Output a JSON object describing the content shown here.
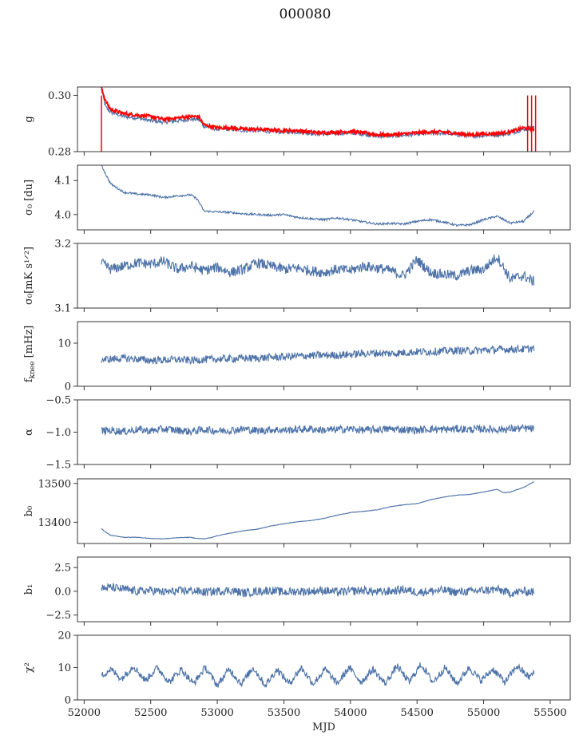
{
  "figure_title": "000080",
  "colors": {
    "series": "#4c72a8",
    "highlight": "#ff0000",
    "axis": "#222222"
  },
  "chart_data": [
    {
      "type": "line",
      "id": "g",
      "ylabel": "g",
      "ylabel_sub": "",
      "xlim": [
        51950,
        55650
      ],
      "ylim": [
        0.28,
        0.303
      ],
      "yticks": [
        0.28,
        0.3
      ],
      "ytick_labels": [
        "0.28",
        "0.30"
      ],
      "show_xtick_labels": false,
      "series": [
        {
          "color": "#4c72a8",
          "x": [
            52130,
            52160,
            52200,
            52300,
            52400,
            52500,
            52600,
            52700,
            52800,
            52860,
            52900,
            53000,
            53100,
            53200,
            53300,
            53400,
            53500,
            53600,
            53700,
            53800,
            53900,
            54000,
            54100,
            54200,
            54300,
            54400,
            54500,
            54600,
            54700,
            54800,
            54900,
            55000,
            55100,
            55200,
            55300,
            55380
          ],
          "y": [
            0.302,
            0.296,
            0.294,
            0.2925,
            0.292,
            0.291,
            0.2905,
            0.291,
            0.2915,
            0.2915,
            0.289,
            0.288,
            0.288,
            0.2875,
            0.2875,
            0.2872,
            0.287,
            0.287,
            0.2865,
            0.2862,
            0.2865,
            0.2867,
            0.2862,
            0.2855,
            0.2855,
            0.2858,
            0.2862,
            0.2866,
            0.2865,
            0.286,
            0.2855,
            0.2858,
            0.286,
            0.2865,
            0.288,
            0.2885
          ]
        },
        {
          "color": "#ff0000",
          "x": [
            52130,
            52160,
            52200,
            52300,
            52400,
            52500,
            52600,
            52700,
            52800,
            52860,
            52900,
            53000,
            53100,
            53200,
            53300,
            53400,
            53500,
            53600,
            53700,
            53800,
            53900,
            54000,
            54100,
            54200,
            54300,
            54400,
            54500,
            54600,
            54700,
            54800,
            54900,
            55000,
            55100,
            55200,
            55300,
            55380
          ],
          "y": [
            0.303,
            0.298,
            0.295,
            0.2935,
            0.293,
            0.2925,
            0.2915,
            0.292,
            0.2925,
            0.2925,
            0.2895,
            0.2885,
            0.2885,
            0.288,
            0.288,
            0.2877,
            0.2875,
            0.2875,
            0.287,
            0.2867,
            0.287,
            0.2872,
            0.2867,
            0.286,
            0.286,
            0.2863,
            0.2867,
            0.287,
            0.287,
            0.2865,
            0.286,
            0.2863,
            0.2865,
            0.287,
            0.2885,
            0.288
          ]
        }
      ]
    },
    {
      "type": "line",
      "id": "sigma0_du",
      "ylabel": "σ₀ [du]",
      "ylabel_sub": "",
      "xlim": [
        51950,
        55650
      ],
      "ylim": [
        3.955,
        4.145
      ],
      "yticks": [
        4.0,
        4.1
      ],
      "ytick_labels": [
        "4.0",
        "4.1"
      ],
      "show_xtick_labels": false,
      "series": [
        {
          "color": "#4c72a8",
          "x": [
            52130,
            52160,
            52200,
            52300,
            52400,
            52500,
            52600,
            52700,
            52800,
            52850,
            52900,
            53000,
            53100,
            53200,
            53300,
            53400,
            53500,
            53600,
            53700,
            53800,
            53900,
            54000,
            54100,
            54200,
            54300,
            54400,
            54500,
            54600,
            54700,
            54800,
            54900,
            55000,
            55100,
            55200,
            55300,
            55380
          ],
          "y": [
            4.145,
            4.12,
            4.09,
            4.065,
            4.06,
            4.058,
            4.05,
            4.055,
            4.058,
            4.045,
            4.01,
            4.008,
            4.006,
            4.002,
            4.0,
            3.998,
            4.0,
            3.992,
            3.988,
            3.985,
            3.99,
            3.985,
            3.978,
            3.972,
            3.974,
            3.972,
            3.98,
            3.985,
            3.978,
            3.968,
            3.97,
            3.985,
            3.995,
            3.975,
            3.98,
            4.01
          ]
        }
      ]
    },
    {
      "type": "line",
      "id": "sigma0_mK",
      "ylabel": "σ₀[mK s¹ᐟ²]",
      "ylabel_sub": "",
      "xlim": [
        51950,
        55650
      ],
      "ylim": [
        3.1,
        3.2
      ],
      "yticks": [
        3.1,
        3.2
      ],
      "ytick_labels": [
        "3.1",
        "3.2"
      ],
      "show_xtick_labels": false,
      "series": [
        {
          "color": "#4c72a8",
          "x": [
            52130,
            52200,
            52300,
            52400,
            52500,
            52600,
            52700,
            52800,
            52900,
            53000,
            53100,
            53200,
            53300,
            53400,
            53500,
            53600,
            53700,
            53800,
            53900,
            54000,
            54100,
            54200,
            54300,
            54400,
            54500,
            54600,
            54700,
            54800,
            54900,
            55000,
            55100,
            55200,
            55300,
            55380
          ],
          "y": [
            3.17,
            3.16,
            3.165,
            3.17,
            3.168,
            3.172,
            3.16,
            3.165,
            3.158,
            3.163,
            3.155,
            3.16,
            3.17,
            3.165,
            3.16,
            3.162,
            3.158,
            3.155,
            3.16,
            3.158,
            3.165,
            3.162,
            3.158,
            3.15,
            3.175,
            3.155,
            3.152,
            3.15,
            3.158,
            3.16,
            3.18,
            3.145,
            3.15,
            3.14
          ]
        }
      ]
    },
    {
      "type": "line",
      "id": "fknee",
      "ylabel": "f_knee [mHz]",
      "ylabel_sub": "knee",
      "xlim": [
        51950,
        55650
      ],
      "ylim": [
        0,
        15
      ],
      "yticks": [
        0,
        10
      ],
      "ytick_labels": [
        "0",
        "10"
      ],
      "show_xtick_labels": false,
      "series": [
        {
          "color": "#4c72a8",
          "x": [
            52130,
            52200,
            52300,
            52400,
            52500,
            52600,
            52700,
            52800,
            52900,
            53000,
            53100,
            53200,
            53300,
            53400,
            53500,
            53600,
            53700,
            53800,
            53900,
            54000,
            54100,
            54200,
            54300,
            54400,
            54500,
            54600,
            54700,
            54800,
            54900,
            55000,
            55100,
            55200,
            55300,
            55380
          ],
          "y": [
            6.2,
            6.3,
            6.5,
            6.3,
            6.0,
            6.1,
            6.2,
            6.0,
            6.2,
            6.3,
            6.4,
            6.5,
            6.5,
            6.7,
            6.8,
            7.0,
            7.1,
            7.2,
            7.2,
            7.4,
            7.6,
            7.7,
            7.6,
            7.8,
            8.0,
            8.0,
            8.2,
            8.3,
            8.2,
            8.4,
            8.5,
            8.6,
            8.6,
            8.8
          ]
        }
      ]
    },
    {
      "type": "line",
      "id": "alpha",
      "ylabel": "α",
      "ylabel_sub": "",
      "xlim": [
        51950,
        55650
      ],
      "ylim": [
        -1.5,
        -0.5
      ],
      "yticks": [
        -1.5,
        -1.0,
        -0.5
      ],
      "ytick_labels": [
        "−1.5",
        "−1.0",
        "−0.5"
      ],
      "show_xtick_labels": false,
      "series": [
        {
          "color": "#4c72a8",
          "x": [
            52130,
            52200,
            52300,
            52400,
            52500,
            52600,
            52700,
            52800,
            52900,
            53000,
            53100,
            53200,
            53300,
            53400,
            53500,
            53600,
            53700,
            53800,
            53900,
            54000,
            54100,
            54200,
            54300,
            54400,
            54500,
            54600,
            54700,
            54800,
            54900,
            55000,
            55100,
            55200,
            55300,
            55380
          ],
          "y": [
            -0.98,
            -0.97,
            -0.99,
            -0.96,
            -0.98,
            -0.95,
            -0.97,
            -0.99,
            -0.96,
            -0.98,
            -0.97,
            -0.95,
            -0.98,
            -0.96,
            -0.97,
            -0.96,
            -0.95,
            -0.97,
            -0.96,
            -0.95,
            -0.97,
            -0.96,
            -0.95,
            -0.96,
            -0.97,
            -0.95,
            -0.96,
            -0.95,
            -0.96,
            -0.95,
            -0.96,
            -0.95,
            -0.94,
            -0.95
          ]
        }
      ]
    },
    {
      "type": "line",
      "id": "b0",
      "ylabel": "b₀",
      "ylabel_sub": "",
      "xlim": [
        51950,
        55650
      ],
      "ylim": [
        13345,
        13512
      ],
      "yticks": [
        13400,
        13500
      ],
      "ytick_labels": [
        "13400",
        "13500"
      ],
      "show_xtick_labels": false,
      "series": [
        {
          "color": "#4c72a8",
          "x": [
            52130,
            52160,
            52200,
            52300,
            52400,
            52500,
            52600,
            52700,
            52800,
            52850,
            52900,
            52950,
            53000,
            53100,
            53200,
            53300,
            53400,
            53500,
            53600,
            53700,
            53800,
            53900,
            54000,
            54100,
            54200,
            54300,
            54400,
            54500,
            54600,
            54700,
            54800,
            54900,
            55000,
            55100,
            55150,
            55200,
            55300,
            55380
          ],
          "y": [
            13383,
            13375,
            13366,
            13361,
            13361,
            13358,
            13357,
            13360,
            13361,
            13358,
            13357,
            13360,
            13365,
            13372,
            13378,
            13382,
            13390,
            13396,
            13401,
            13404,
            13410,
            13418,
            13425,
            13428,
            13432,
            13440,
            13445,
            13448,
            13458,
            13465,
            13470,
            13472,
            13478,
            13485,
            13476,
            13478,
            13490,
            13505
          ]
        }
      ]
    },
    {
      "type": "line",
      "id": "b1",
      "ylabel": "b₁",
      "ylabel_sub": "",
      "xlim": [
        51950,
        55650
      ],
      "ylim": [
        -3.2,
        3.6
      ],
      "yticks": [
        -2.5,
        0.0,
        2.5
      ],
      "ytick_labels": [
        "−2.5",
        "0.0",
        "2.5"
      ],
      "show_xtick_labels": false,
      "series": [
        {
          "color": "#4c72a8",
          "x": [
            52130,
            52200,
            52300,
            52400,
            52500,
            52600,
            52700,
            52800,
            52900,
            53000,
            53100,
            53200,
            53300,
            53400,
            53500,
            53600,
            53700,
            53800,
            53900,
            54000,
            54100,
            54200,
            54300,
            54400,
            54500,
            54600,
            54700,
            54800,
            54900,
            55000,
            55100,
            55200,
            55300,
            55380
          ],
          "y": [
            0.3,
            0.4,
            0.2,
            0.0,
            0.1,
            -0.1,
            0.0,
            0.1,
            -0.1,
            0.0,
            0.1,
            -0.2,
            0.0,
            0.1,
            -0.1,
            0.0,
            0.0,
            0.1,
            -0.1,
            0.0,
            0.1,
            -0.1,
            0.0,
            0.2,
            -0.1,
            0.0,
            0.1,
            -0.1,
            0.0,
            0.1,
            0.2,
            -0.2,
            0.0,
            -0.1
          ]
        }
      ]
    },
    {
      "type": "line",
      "id": "chi2",
      "ylabel": "χ²",
      "ylabel_sub": "",
      "xlim": [
        51950,
        55650
      ],
      "ylim": [
        0,
        20
      ],
      "yticks": [
        0,
        10,
        20
      ],
      "ytick_labels": [
        "0",
        "10",
        "20"
      ],
      "show_xtick_labels": true,
      "xticks": [
        52000,
        52500,
        53000,
        53500,
        54000,
        54500,
        55000,
        55500
      ],
      "xtick_labels": [
        "52000",
        "52500",
        "53000",
        "53500",
        "54000",
        "54500",
        "55000",
        "55500"
      ],
      "xlabel": "MJD",
      "series": [
        {
          "color": "#4c72a8",
          "x": [
            52130,
            52200,
            52280,
            52370,
            52460,
            52550,
            52640,
            52730,
            52820,
            52910,
            53000,
            53090,
            53180,
            53270,
            53360,
            53450,
            53540,
            53630,
            53720,
            53810,
            53900,
            53990,
            54080,
            54170,
            54260,
            54350,
            54440,
            54530,
            54620,
            54710,
            54800,
            54890,
            54980,
            55070,
            55160,
            55250,
            55340,
            55380
          ],
          "y": [
            7.5,
            9.5,
            6.5,
            10.5,
            6.0,
            10.0,
            5.5,
            9.5,
            5.0,
            10.0,
            4.5,
            9.5,
            5.0,
            10.0,
            4.5,
            9.5,
            5.0,
            10.0,
            5.0,
            9.5,
            5.0,
            10.0,
            5.5,
            9.5,
            5.0,
            10.5,
            5.5,
            11.0,
            5.5,
            10.0,
            5.0,
            10.0,
            6.0,
            9.5,
            5.5,
            10.5,
            7.0,
            8.5
          ]
        }
      ]
    }
  ]
}
